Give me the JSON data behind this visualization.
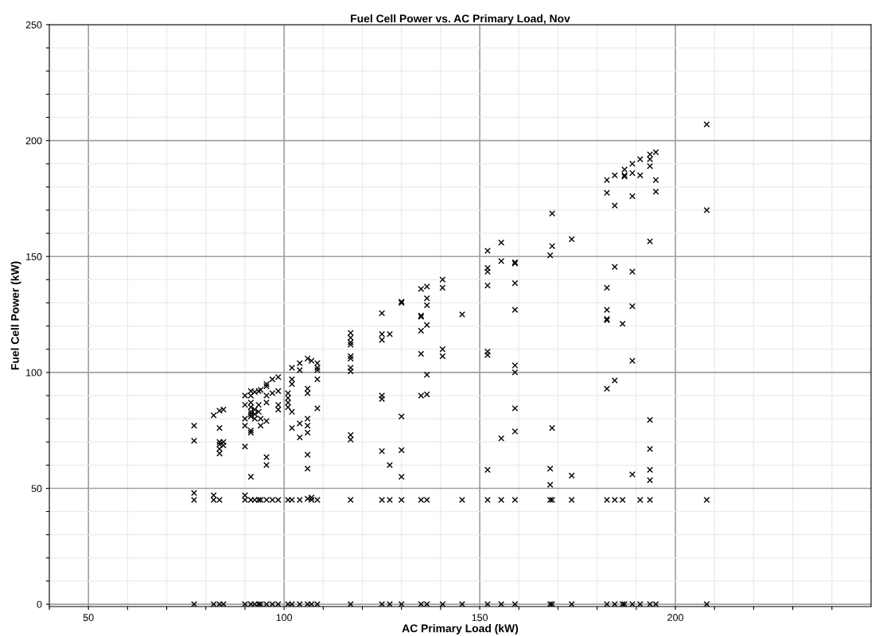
{
  "chart_data": {
    "type": "scatter",
    "title": "Fuel Cell Power vs. AC Primary Load, Nov",
    "xlabel": "AC Primary Load (kW)",
    "ylabel": "Fuel Cell Power (kW)",
    "xlim": [
      40,
      250
    ],
    "ylim": [
      -1,
      250
    ],
    "xticks": [
      {
        "value": 40,
        "label": null
      },
      50,
      {
        "value": 60,
        "label": null
      },
      {
        "value": 70,
        "label": null
      },
      {
        "value": 80,
        "label": null
      },
      {
        "value": 90,
        "label": null
      },
      100,
      {
        "value": 110,
        "label": null
      },
      {
        "value": 120,
        "label": null
      },
      {
        "value": 130,
        "label": null
      },
      {
        "value": 140,
        "label": null
      },
      150,
      {
        "value": 160,
        "label": null
      },
      {
        "value": 170,
        "label": null
      },
      {
        "value": 180,
        "label": null
      },
      {
        "value": 190,
        "label": null
      },
      200,
      {
        "value": 210,
        "label": null
      },
      {
        "value": 220,
        "label": null
      },
      {
        "value": 230,
        "label": null
      },
      {
        "value": 240,
        "label": null
      }
    ],
    "yticks": [
      0,
      {
        "value": 10,
        "label": null
      },
      {
        "value": 20,
        "label": null
      },
      {
        "value": 30,
        "label": null
      },
      {
        "value": 40,
        "label": null
      },
      50,
      {
        "value": 60,
        "label": null
      },
      {
        "value": 70,
        "label": null
      },
      {
        "value": 80,
        "label": null
      },
      {
        "value": 90,
        "label": null
      },
      100,
      {
        "value": 110,
        "label": null
      },
      {
        "value": 120,
        "label": null
      },
      {
        "value": 130,
        "label": null
      },
      {
        "value": 140,
        "label": null
      },
      150,
      {
        "value": 160,
        "label": null
      },
      {
        "value": 170,
        "label": null
      },
      {
        "value": 180,
        "label": null
      },
      {
        "value": 190,
        "label": null
      },
      200,
      {
        "value": 210,
        "label": null
      },
      {
        "value": 220,
        "label": null
      },
      {
        "value": 230,
        "label": null
      },
      {
        "value": 240,
        "label": null
      },
      250
    ],
    "grid": true,
    "marker": "cross",
    "series": [
      {
        "color": "#000000",
        "x": [
          77,
          77,
          77,
          77,
          77,
          82,
          82,
          82,
          82,
          83.5,
          83.5,
          83.5,
          83.5,
          83.5,
          83.5,
          83.5,
          83.5,
          84.5,
          84.5,
          84.5,
          84.5,
          90,
          90,
          90,
          90,
          90,
          90,
          90,
          90,
          91.5,
          91.5,
          91.5,
          91.5,
          91.5,
          91.5,
          91.5,
          91.5,
          91.5,
          91.5,
          91.5,
          91.5,
          92.5,
          92.5,
          92.5,
          92.5,
          92.5,
          92.5,
          93.5,
          93.5,
          93.5,
          93.5,
          93.5,
          94,
          94,
          94,
          94,
          94,
          95.5,
          95.5,
          95.5,
          95.5,
          95.5,
          95.5,
          95.5,
          95.5,
          95.5,
          97,
          97,
          97,
          97,
          98.5,
          98.5,
          98.5,
          98.5,
          98.5,
          98.5,
          101,
          101,
          101,
          101,
          101,
          101,
          102,
          102,
          102,
          102,
          102,
          102,
          102,
          104,
          104,
          104,
          104,
          104,
          104,
          106,
          106,
          106,
          106,
          106,
          106,
          106,
          106,
          106,
          106,
          107,
          107,
          107,
          107,
          108.5,
          108.5,
          108.5,
          108.5,
          108.5,
          108.5,
          108.5,
          117,
          117,
          117,
          117,
          117,
          117,
          117,
          117,
          117,
          117,
          117,
          117,
          125,
          125,
          125,
          125,
          125,
          125,
          125,
          125,
          127,
          127,
          127,
          127,
          130,
          130,
          130,
          130,
          130,
          130,
          130,
          135,
          135,
          135,
          135,
          135,
          135,
          135,
          135,
          136.5,
          136.5,
          136.5,
          136.5,
          136.5,
          136.5,
          136.5,
          136.5,
          140.5,
          140.5,
          140.5,
          140.5,
          140.5,
          145.5,
          145.5,
          145.5,
          152,
          152,
          152,
          152,
          152,
          152,
          152,
          152,
          152,
          155.5,
          155.5,
          155.5,
          155.5,
          155.5,
          159,
          159,
          159,
          159,
          159,
          159,
          159,
          159,
          159,
          159,
          168,
          168,
          168,
          168,
          168,
          168.5,
          168.5,
          168.5,
          168.5,
          168.5,
          173.5,
          173.5,
          173.5,
          173.5,
          182.5,
          182.5,
          182.5,
          182.5,
          182.5,
          182.5,
          182.5,
          182.5,
          182.5,
          184.5,
          184.5,
          184.5,
          184.5,
          184.5,
          184.5,
          186.5,
          186.5,
          186.5,
          187,
          187,
          187,
          187,
          189,
          189,
          189,
          189,
          189,
          189,
          189,
          189,
          191,
          191,
          191,
          191,
          193.5,
          193.5,
          193.5,
          193.5,
          193.5,
          193.5,
          193.5,
          193.5,
          193.5,
          193.5,
          195,
          195,
          195,
          195,
          208,
          208,
          208,
          208
        ],
        "values": [
          77,
          70.5,
          48,
          45,
          0,
          81.5,
          47,
          45,
          0,
          83.5,
          76,
          70,
          69,
          67,
          65,
          45,
          0,
          84,
          70,
          68.5,
          0,
          90,
          86,
          80,
          77,
          68,
          47,
          45,
          0,
          92,
          90,
          87,
          85,
          83,
          82,
          81,
          75,
          74,
          55,
          45,
          0,
          91.5,
          84,
          82,
          80,
          45,
          0,
          92,
          86,
          83,
          45,
          0,
          92.5,
          80,
          77,
          45,
          0,
          95,
          94,
          90,
          87,
          79,
          63.5,
          60,
          45,
          0,
          97,
          91,
          45,
          0,
          98,
          92,
          86,
          84,
          45,
          0,
          91,
          89,
          87,
          85,
          45,
          0,
          102,
          97,
          95,
          83,
          76,
          45,
          0,
          104,
          101,
          78,
          72,
          45,
          0,
          106,
          93,
          91,
          80,
          77,
          74,
          64.5,
          58.5,
          45.5,
          0,
          105,
          46,
          45,
          0,
          104,
          102,
          101,
          97,
          84.5,
          45,
          0,
          117,
          115,
          113,
          112,
          107,
          106,
          102,
          100.5,
          73,
          71,
          45,
          0,
          125.5,
          116.5,
          114,
          90,
          88.5,
          66,
          45,
          0,
          116.5,
          60,
          45,
          0,
          130.5,
          130,
          81,
          66.5,
          55,
          45,
          0,
          136,
          124.5,
          124,
          118,
          108,
          90,
          45,
          0,
          137,
          132,
          129,
          120.5,
          99,
          90.5,
          45,
          0,
          140,
          136.5,
          110,
          107,
          0,
          125,
          45,
          0,
          152.5,
          145,
          143.5,
          137.5,
          109,
          107.5,
          58,
          45,
          0,
          156,
          148,
          71.5,
          45,
          0,
          147.5,
          147,
          138.5,
          127,
          103,
          100,
          84.5,
          74.5,
          45,
          0,
          150.5,
          58.5,
          51.5,
          45,
          0,
          168.5,
          154.5,
          76,
          45,
          0,
          157.5,
          55.5,
          45,
          0,
          183,
          177.5,
          136.5,
          127,
          123,
          122.5,
          93,
          45,
          0,
          185,
          172,
          145.5,
          96.5,
          45,
          0,
          121,
          45,
          0,
          187.5,
          185,
          184.5,
          0,
          190,
          186,
          176,
          143.5,
          128.5,
          105,
          56,
          0,
          192,
          185,
          45,
          0,
          194,
          192,
          189,
          156.5,
          79.5,
          67,
          58,
          53.5,
          45,
          0,
          195,
          183,
          178,
          0,
          207,
          170,
          45,
          0
        ]
      }
    ]
  }
}
